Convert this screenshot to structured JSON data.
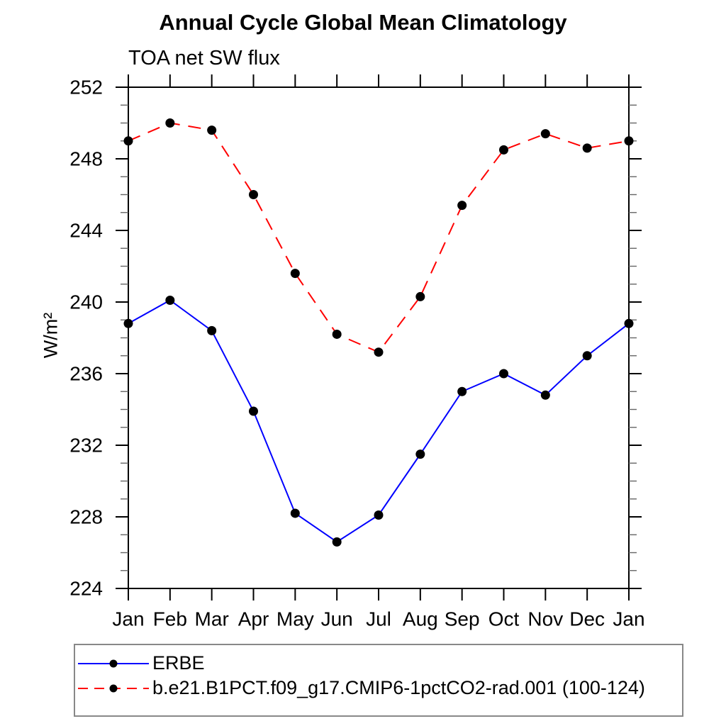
{
  "page": {
    "background": "#ffffff"
  },
  "chart_data": {
    "type": "line",
    "title": "Annual Cycle Global Mean Climatology",
    "subtitle": "TOA net SW flux",
    "ylabel": "W/m²",
    "xlabel": "",
    "x_categories": [
      "Jan",
      "Feb",
      "Mar",
      "Apr",
      "May",
      "Jun",
      "Jul",
      "Aug",
      "Sep",
      "Oct",
      "Nov",
      "Dec",
      "Jan"
    ],
    "ylim": [
      224,
      252
    ],
    "ytick_major_interval": 4,
    "ytick_minor_interval": 1,
    "ytick_labels": [
      "252",
      "248",
      "244",
      "240",
      "236",
      "232",
      "228",
      "224"
    ],
    "grid": false,
    "legend_position": "bottom-left",
    "axis_color": "#000000",
    "series": [
      {
        "name": "ERBE",
        "color": "#0000ff",
        "line_style": "solid",
        "line_width": 2,
        "marker": "filled-circle",
        "marker_color": "#000000",
        "values": [
          238.8,
          240.1,
          238.4,
          233.9,
          228.2,
          226.6,
          228.1,
          231.5,
          235.0,
          236.0,
          234.8,
          237.0,
          238.8
        ]
      },
      {
        "name": "b.e21.B1PCT.f09_g17.CMIP6-1pctCO2-rad.001 (100-124)",
        "color": "#ff0000",
        "line_style": "dashed",
        "line_width": 2,
        "marker": "filled-circle",
        "marker_color": "#000000",
        "values": [
          249.0,
          250.0,
          249.6,
          246.0,
          241.6,
          238.2,
          237.2,
          240.3,
          245.4,
          248.5,
          249.4,
          248.6,
          249.0
        ]
      }
    ]
  }
}
